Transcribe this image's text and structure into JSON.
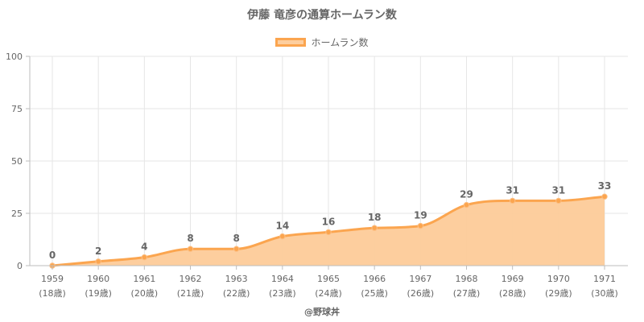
{
  "chart_data": {
    "type": "area",
    "title": "伊藤 竜彦の通算ホームラン数",
    "legend": {
      "label": "ホームラン数",
      "position": "top"
    },
    "x": [
      "1959",
      "1960",
      "1961",
      "1962",
      "1963",
      "1964",
      "1965",
      "1966",
      "1967",
      "1968",
      "1969",
      "1970",
      "1971"
    ],
    "x_sub": [
      "(18歳)",
      "(19歳)",
      "(20歳)",
      "(21歳)",
      "(22歳)",
      "(23歳)",
      "(24歳)",
      "(25歳)",
      "(26歳)",
      "(27歳)",
      "(28歳)",
      "(29歳)",
      "(30歳)"
    ],
    "series": [
      {
        "name": "ホームラン数",
        "values": [
          0,
          2,
          4,
          8,
          8,
          14,
          16,
          18,
          19,
          29,
          31,
          31,
          33
        ]
      }
    ],
    "yticks": [
      0,
      25,
      50,
      75,
      100
    ],
    "ylim": [
      0,
      100
    ],
    "grid": true,
    "colors": {
      "line": "#fba54f",
      "fill": "#fdcb99",
      "point": "#fba54f"
    }
  },
  "credit": "@野球丼"
}
